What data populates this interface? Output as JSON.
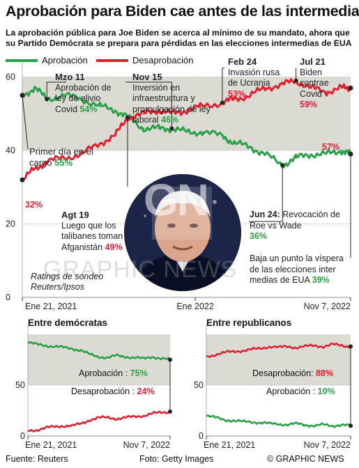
{
  "title": "Aprobación para Biden cae antes de las intermedias",
  "subtitle_lines": [
    "La aprobación pública para Joe Biden se acerca al mínimo de su mandato, ahora que",
    "su Partido Demócrata se prepara para pérdidas en las elecciones intermedias de EUA"
  ],
  "legend": {
    "approval": "Aprobación",
    "disapproval": "Desaprobación"
  },
  "colors": {
    "approval": "#27a046",
    "disapproval": "#e02030",
    "band": "#dbdbd4",
    "bg": "#ffffff"
  },
  "chart_data": [
    {
      "type": "line",
      "ylim": [
        0,
        62
      ],
      "yticks": [
        "60",
        "40",
        "20",
        "0"
      ],
      "xticks": [
        "Ene 21, 2021",
        "Ene 2022",
        "Nov 7, 2022"
      ],
      "source_note": "Ratings de sondeo Reuters/Ipsos",
      "series": [
        {
          "name": "Aprobación",
          "x": [
            "2021-01-21",
            "2021-02-15",
            "2021-03-11",
            "2021-04-15",
            "2021-05-20",
            "2021-06-25",
            "2021-07-25",
            "2021-08-19",
            "2021-09-20",
            "2021-10-20",
            "2021-11-15",
            "2021-12-15",
            "2022-01-15",
            "2022-02-24",
            "2022-03-20",
            "2022-04-20",
            "2022-05-20",
            "2022-06-24",
            "2022-07-21",
            "2022-08-20",
            "2022-09-20",
            "2022-10-20",
            "2022-11-07"
          ],
          "values": [
            55,
            57,
            54,
            55,
            54,
            52,
            51,
            49,
            46,
            46,
            46,
            45,
            45,
            44,
            42,
            41,
            39,
            36,
            38,
            39,
            39,
            40,
            39
          ]
        },
        {
          "name": "Desaprobación",
          "x": [
            "2021-01-21",
            "2021-02-15",
            "2021-03-11",
            "2021-04-15",
            "2021-05-20",
            "2021-06-25",
            "2021-07-25",
            "2021-08-19",
            "2021-09-20",
            "2021-10-20",
            "2021-11-15",
            "2021-12-15",
            "2022-01-15",
            "2022-02-24",
            "2022-03-20",
            "2022-04-20",
            "2022-05-20",
            "2022-06-24",
            "2022-07-21",
            "2022-08-20",
            "2022-09-20",
            "2022-10-20",
            "2022-11-07"
          ],
          "values": [
            32,
            35,
            37,
            38,
            39,
            42,
            44,
            49,
            50,
            51,
            50,
            51,
            52,
            53,
            54,
            55,
            57,
            58,
            59,
            57,
            56,
            57,
            57
          ]
        }
      ]
    },
    {
      "type": "line",
      "title": "Entre demócratas",
      "ylim": [
        0,
        100
      ],
      "yticks": [
        "50",
        "0"
      ],
      "xticks": [
        "Ene 21, 2021",
        "Nov 7, 2022"
      ],
      "series": [
        {
          "name": "Aprobación",
          "values": [
            92,
            90,
            89,
            88,
            87,
            86,
            84,
            80,
            78,
            77,
            79,
            78,
            77,
            76,
            78,
            76,
            75
          ]
        },
        {
          "name": "Desaprobación",
          "values": [
            5,
            6,
            8,
            9,
            10,
            10,
            12,
            16,
            18,
            18,
            17,
            18,
            19,
            20,
            22,
            23,
            24
          ]
        }
      ]
    },
    {
      "type": "line",
      "title": "Entre republicanos",
      "ylim": [
        0,
        100
      ],
      "yticks": [
        "50",
        "0"
      ],
      "xticks": [
        "Ene 21, 2021",
        "Nov 7, 2022"
      ],
      "series": [
        {
          "name": "Desaprobación",
          "values": [
            78,
            80,
            82,
            83,
            84,
            85,
            86,
            88,
            87,
            88,
            87,
            88,
            89,
            88,
            90,
            89,
            88
          ]
        },
        {
          "name": "Aprobación",
          "values": [
            20,
            18,
            16,
            15,
            14,
            14,
            13,
            12,
            12,
            11,
            12,
            11,
            10,
            11,
            10,
            11,
            10
          ]
        }
      ]
    }
  ],
  "annotations": {
    "mzo11": {
      "date": "Mzo 11",
      "text": "Aprobación de ley de alivio Covid",
      "value": "54%"
    },
    "nov15": {
      "date": "Nov 15",
      "text": "Inversión en infraestructura y promulgación de ley laboral",
      "value": "46%"
    },
    "feb24": {
      "date": "Feb 24",
      "text": "Invasión rusa de Ucrania",
      "value": "53%"
    },
    "jul21": {
      "date": "Jul 21",
      "text": "Biden contrae Covid",
      "value": "59%"
    },
    "first_day": {
      "text": "Primer día en el cargo",
      "value": "55%"
    },
    "agt19": {
      "date": "Agt 19",
      "text": "Luego que los talibanes toman Afganistán",
      "value": "49%"
    },
    "jun24": {
      "date": "Jun 24:",
      "text": "Revocación de Roe vs Wade",
      "value": "36%"
    },
    "eve": {
      "text": "Baja un punto la víspera de las elecciones inter medias de EUA",
      "value": "39%"
    },
    "start_dis": "32%",
    "end_dis": "57%"
  },
  "mini": {
    "dem_approval": "Aprobación : ",
    "dem_approval_val": "75%",
    "dem_disapproval": "Desaprobación : ",
    "dem_disapproval_val": "24%",
    "rep_disapproval": "Desaprobación: ",
    "rep_disapproval_val": "88%",
    "rep_approval": "Aprobación : ",
    "rep_approval_val": "10%"
  },
  "watermark": "GRAPHIC NEWS",
  "logo": "GN",
  "footer": {
    "source": "Fuente: Reuters",
    "photo": "Foto: Getty Images",
    "brand": "© GRAPHIC NEWS"
  }
}
